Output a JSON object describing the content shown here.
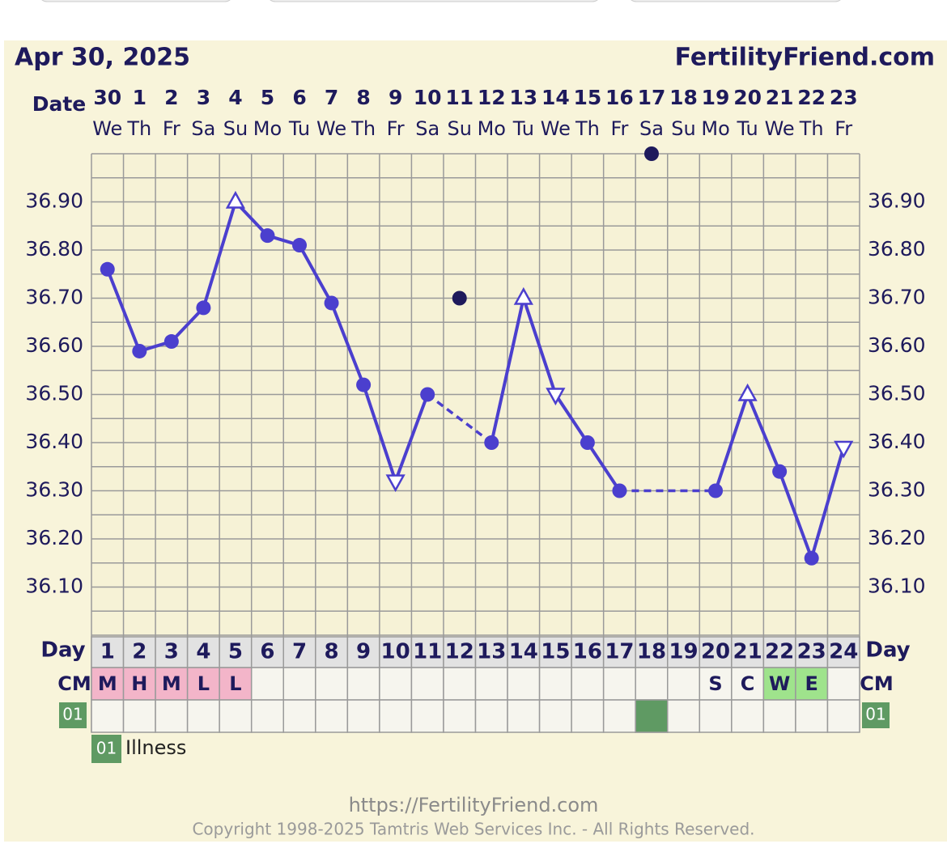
{
  "chart_data": {
    "type": "line",
    "title": "Apr 30, 2025",
    "brand": "FertilityFriend.com",
    "date_label": "Date",
    "dates": [
      "30",
      "1",
      "2",
      "3",
      "4",
      "5",
      "6",
      "7",
      "8",
      "9",
      "10",
      "11",
      "12",
      "13",
      "14",
      "15",
      "16",
      "17",
      "18",
      "19",
      "20",
      "21",
      "22",
      "23"
    ],
    "weekdays": [
      "We",
      "Th",
      "Fr",
      "Sa",
      "Su",
      "Mo",
      "Tu",
      "We",
      "Th",
      "Fr",
      "Sa",
      "Su",
      "Mo",
      "Tu",
      "We",
      "Th",
      "Fr",
      "Sa",
      "Su",
      "Mo",
      "Tu",
      "We",
      "Th",
      "Fr"
    ],
    "day_label": "Day",
    "days": [
      1,
      2,
      3,
      4,
      5,
      6,
      7,
      8,
      9,
      10,
      11,
      12,
      13,
      14,
      15,
      16,
      17,
      18,
      19,
      20,
      21,
      22,
      23,
      24
    ],
    "xlim": [
      0.5,
      24.5
    ],
    "ylim": [
      36.0,
      37.0
    ],
    "yticks": [
      {
        "value": 36.1,
        "label": "36.10"
      },
      {
        "value": 36.2,
        "label": "36.20"
      },
      {
        "value": 36.3,
        "label": "36.30"
      },
      {
        "value": 36.4,
        "label": "36.40"
      },
      {
        "value": 36.5,
        "label": "36.50"
      },
      {
        "value": 36.6,
        "label": "36.60"
      },
      {
        "value": 36.7,
        "label": "36.70"
      },
      {
        "value": 36.8,
        "label": "36.80"
      },
      {
        "value": 36.9,
        "label": "36.90"
      }
    ],
    "ygrid": [
      36.0,
      36.05,
      36.1,
      36.15,
      36.2,
      36.25,
      36.3,
      36.35,
      36.4,
      36.45,
      36.5,
      36.55,
      36.6,
      36.65,
      36.7,
      36.75,
      36.8,
      36.85,
      36.9,
      36.95,
      37.0
    ],
    "grid": true,
    "series": [
      {
        "color": "#4b3fce",
        "values": [
          36.76,
          36.59,
          36.61,
          36.68,
          36.9,
          36.83,
          36.81,
          36.69,
          36.52,
          36.32,
          36.5,
          null,
          36.4,
          36.7,
          36.5,
          36.4,
          36.3,
          null,
          null,
          36.3,
          36.5,
          36.34,
          36.16,
          36.39
        ],
        "markers": [
          "circle",
          "circle",
          "circle",
          "circle",
          "triangle-up",
          "circle",
          "circle",
          "circle",
          "circle",
          "triangle-down",
          "circle",
          null,
          "circle",
          "triangle-up",
          "triangle-down",
          "circle",
          "circle",
          null,
          null,
          "circle",
          "triangle-up",
          "circle",
          "circle",
          "triangle-down"
        ]
      }
    ],
    "discarded": {
      "color": "#1e1a5c",
      "values": [
        null,
        null,
        null,
        null,
        null,
        null,
        null,
        null,
        null,
        null,
        null,
        36.7,
        null,
        null,
        null,
        null,
        null,
        37.0,
        null,
        null,
        null,
        null,
        null,
        null
      ]
    },
    "cm_label": "CM",
    "cm": [
      "M",
      "H",
      "M",
      "L",
      "L",
      null,
      null,
      null,
      null,
      null,
      null,
      null,
      null,
      null,
      null,
      null,
      null,
      null,
      null,
      "S",
      "C",
      "W",
      "E",
      null
    ],
    "cm_colors": {
      "M": "#f3b5c9",
      "H": "#f3b5c9",
      "L": "#f3b5c9",
      "W": "#9fe38c",
      "E": "#9fe38c"
    },
    "code_days": [
      18
    ],
    "legend": [
      {
        "code": "01",
        "label": "Illness",
        "color": "#5f9a63"
      }
    ],
    "footer_url": "https://FertilityFriend.com",
    "copyright": "Copyright 1998-2025 Tamtris Web Services Inc. - All Rights Reserved."
  }
}
